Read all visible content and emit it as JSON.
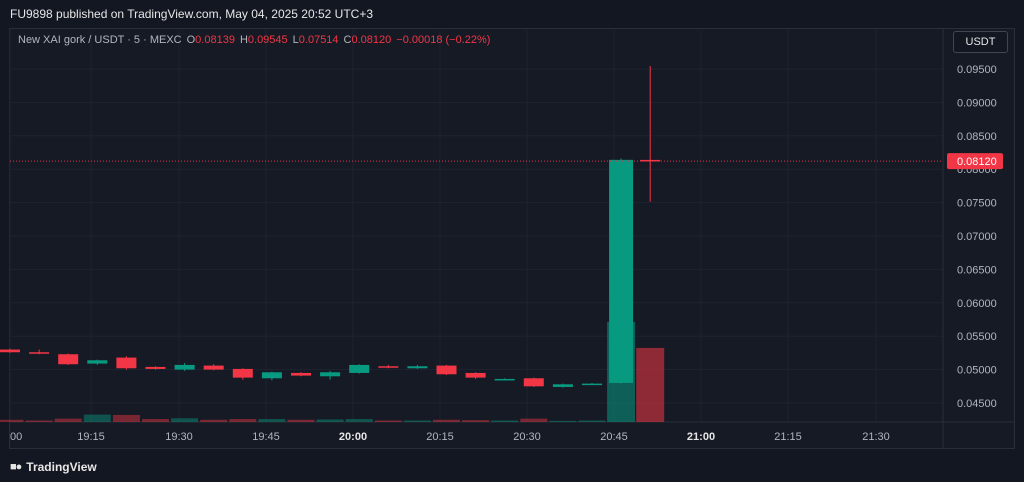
{
  "header": {
    "publisher_text": "FU9898 published on TradingView.com, May 04, 2025 20:52 UTC+3"
  },
  "legend": {
    "symbol": "New XAI gork / USDT · 5 · MEXC",
    "o_label": "O",
    "o_value": "0.08139",
    "h_label": "H",
    "h_value": "0.09545",
    "l_label": "L",
    "l_value": "0.07514",
    "c_label": "C",
    "c_value": "0.08120",
    "change": "−0.00018 (−0.22%)"
  },
  "currency_button": "USDT",
  "footer": {
    "brand": "TradingView",
    "brand_icon": "tradingview-logo-icon"
  },
  "colors": {
    "up": "#089981",
    "down": "#f23645",
    "background": "#161a25",
    "grid": "#1f2330"
  },
  "chart_data": {
    "type": "candlestick",
    "interval": "5",
    "y_ticks": [
      "0.09500",
      "0.09000",
      "0.08500",
      "0.08000",
      "0.07500",
      "0.07000",
      "0.06500",
      "0.06000",
      "0.05500",
      "0.05000",
      "0.04500"
    ],
    "x_ticks": [
      "00",
      "19:15",
      "19:30",
      "19:45",
      "20:00",
      "20:15",
      "20:30",
      "20:45",
      "21:00",
      "21:15",
      "21:30"
    ],
    "last_price": 0.0812,
    "last_price_label": "0.08120",
    "candles": [
      {
        "o": 0.053,
        "h": 0.0531,
        "l": 0.0525,
        "c": 0.0526
      },
      {
        "o": 0.0526,
        "h": 0.053,
        "l": 0.0523,
        "c": 0.0524
      },
      {
        "o": 0.0523,
        "h": 0.0524,
        "l": 0.0507,
        "c": 0.0508
      },
      {
        "o": 0.0509,
        "h": 0.0515,
        "l": 0.0507,
        "c": 0.0514
      },
      {
        "o": 0.0518,
        "h": 0.052,
        "l": 0.05,
        "c": 0.0502
      },
      {
        "o": 0.0504,
        "h": 0.0505,
        "l": 0.05,
        "c": 0.0501
      },
      {
        "o": 0.05,
        "h": 0.051,
        "l": 0.0498,
        "c": 0.0507
      },
      {
        "o": 0.0506,
        "h": 0.0508,
        "l": 0.0499,
        "c": 0.05
      },
      {
        "o": 0.0501,
        "h": 0.0502,
        "l": 0.0485,
        "c": 0.0488
      },
      {
        "o": 0.0487,
        "h": 0.0497,
        "l": 0.0484,
        "c": 0.0496
      },
      {
        "o": 0.0495,
        "h": 0.0496,
        "l": 0.049,
        "c": 0.0491
      },
      {
        "o": 0.049,
        "h": 0.0498,
        "l": 0.0485,
        "c": 0.0496
      },
      {
        "o": 0.0495,
        "h": 0.0508,
        "l": 0.0494,
        "c": 0.0507
      },
      {
        "o": 0.0505,
        "h": 0.0507,
        "l": 0.0502,
        "c": 0.0503
      },
      {
        "o": 0.0502,
        "h": 0.0507,
        "l": 0.0501,
        "c": 0.0505
      },
      {
        "o": 0.0506,
        "h": 0.0507,
        "l": 0.0492,
        "c": 0.0493
      },
      {
        "o": 0.0495,
        "h": 0.0496,
        "l": 0.0486,
        "c": 0.0488
      },
      {
        "o": 0.0486,
        "h": 0.0487,
        "l": 0.0485,
        "c": 0.0486
      },
      {
        "o": 0.0487,
        "h": 0.0488,
        "l": 0.0474,
        "c": 0.0475
      },
      {
        "o": 0.0474,
        "h": 0.0479,
        "l": 0.0473,
        "c": 0.0478
      },
      {
        "o": 0.0478,
        "h": 0.048,
        "l": 0.0477,
        "c": 0.0479
      },
      {
        "o": 0.048,
        "h": 0.0816,
        "l": 0.0479,
        "c": 0.0814
      },
      {
        "o": 0.08139,
        "h": 0.09545,
        "l": 0.07514,
        "c": 0.0812
      }
    ],
    "volumes": [
      0.3,
      0.2,
      0.45,
      1.0,
      0.95,
      0.4,
      0.5,
      0.3,
      0.4,
      0.4,
      0.3,
      0.35,
      0.4,
      0.2,
      0.2,
      0.3,
      0.25,
      0.2,
      0.45,
      0.15,
      0.2,
      13.5,
      10.0
    ]
  }
}
